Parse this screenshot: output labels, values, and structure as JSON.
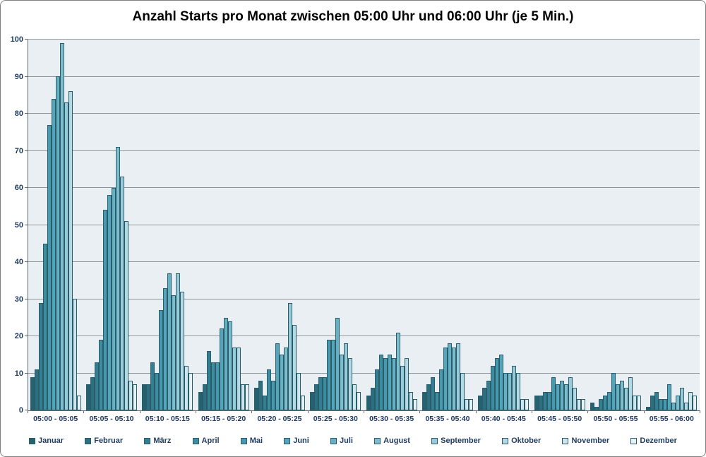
{
  "chart_data": {
    "type": "bar",
    "title": "Anzahl Starts pro Monat zwischen 05:00 Uhr und 06:00 Uhr (je 5 Min.)",
    "xlabel": "",
    "ylabel": "",
    "ylim": [
      0,
      100
    ],
    "ytick_step": 10,
    "grid": true,
    "legend_position": "bottom",
    "categories": [
      "05:00 - 05:05",
      "05:05 - 05:10",
      "05:10 - 05:15",
      "05:15 - 05:20",
      "05:20 - 05:25",
      "05:25 - 05:30",
      "05:30 - 05:35",
      "05:35 - 05:40",
      "05:40 - 05:45",
      "05:45 - 05:50",
      "05:50 - 05:55",
      "05:55 - 06:00"
    ],
    "series": [
      {
        "name": "Januar",
        "color": "#256271",
        "values": [
          9,
          7,
          7,
          5,
          6,
          5,
          4,
          5,
          4,
          4,
          2,
          1
        ]
      },
      {
        "name": "Februar",
        "color": "#2b6f80",
        "values": [
          11,
          9,
          7,
          7,
          8,
          7,
          6,
          7,
          6,
          4,
          1,
          4
        ]
      },
      {
        "name": "März",
        "color": "#337e90",
        "values": [
          29,
          13,
          13,
          16,
          4,
          9,
          11,
          9,
          8,
          5,
          3,
          5
        ]
      },
      {
        "name": "April",
        "color": "#3c8da0",
        "values": [
          45,
          19,
          10,
          13,
          11,
          9,
          15,
          5,
          12,
          5,
          4,
          3
        ]
      },
      {
        "name": "Mai",
        "color": "#4699ae",
        "values": [
          77,
          54,
          27,
          13,
          8,
          19,
          14,
          11,
          14,
          9,
          5,
          3
        ]
      },
      {
        "name": "Juni",
        "color": "#52a5ba",
        "values": [
          84,
          58,
          33,
          22,
          18,
          19,
          15,
          17,
          15,
          7,
          10,
          7
        ]
      },
      {
        "name": "Juli",
        "color": "#65b0c3",
        "values": [
          90,
          60,
          37,
          25,
          15,
          25,
          14,
          18,
          10,
          8,
          7,
          2
        ]
      },
      {
        "name": "August",
        "color": "#7dbdcd",
        "values": [
          99,
          71,
          31,
          24,
          17,
          15,
          21,
          17,
          10,
          7,
          8,
          4
        ]
      },
      {
        "name": "September",
        "color": "#98cbd9",
        "values": [
          83,
          63,
          37,
          17,
          29,
          18,
          12,
          18,
          12,
          9,
          6,
          6
        ]
      },
      {
        "name": "Oktober",
        "color": "#b3d9e4",
        "values": [
          86,
          51,
          32,
          17,
          23,
          14,
          14,
          10,
          10,
          6,
          9,
          2
        ]
      },
      {
        "name": "November",
        "color": "#cde6ee",
        "values": [
          30,
          8,
          12,
          7,
          10,
          7,
          5,
          3,
          3,
          3,
          4,
          5
        ]
      },
      {
        "name": "Dezember",
        "color": "#e6f2f7",
        "values": [
          4,
          7,
          10,
          7,
          4,
          5,
          3,
          3,
          3,
          3,
          4,
          4
        ]
      }
    ],
    "palette": {
      "plot_background": "#e9eff3",
      "gridline": "#8e959b",
      "axis": "#5f6a70",
      "bar_border": "#2a5c6a",
      "tick_label": "#1f3864",
      "title_color": "#000000",
      "frame_border": "#7f7f7f"
    }
  }
}
